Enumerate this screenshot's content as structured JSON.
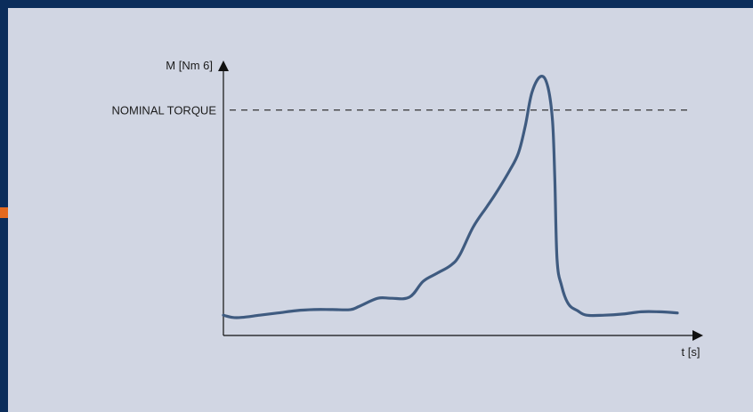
{
  "chart_data": {
    "type": "line",
    "title": "",
    "ylabel": "M [Nm 6]",
    "xlabel": "t [s]",
    "reference_line": {
      "label": "NOMINAL TORQUE",
      "value": 1.0,
      "style": "dashed"
    },
    "xlim": [
      0,
      10
    ],
    "ylim": [
      0,
      1.2
    ],
    "grid": false,
    "legend": "none",
    "series": [
      {
        "color": "#3f5b80",
        "x": [
          0.0,
          0.2,
          0.4,
          0.8,
          1.2,
          1.6,
          2.0,
          2.4,
          2.8,
          3.0,
          3.4,
          3.7,
          4.1,
          4.4,
          4.7,
          5.0,
          5.2,
          5.5,
          5.8,
          6.0,
          6.3,
          6.5,
          6.65,
          6.8,
          7.0,
          7.15,
          7.25,
          7.3,
          7.35,
          7.45,
          7.6,
          7.8,
          8.0,
          8.4,
          8.8,
          9.2,
          9.6,
          10.0
        ],
        "y": [
          0.09,
          0.08,
          0.08,
          0.09,
          0.1,
          0.11,
          0.115,
          0.115,
          0.115,
          0.13,
          0.165,
          0.165,
          0.17,
          0.24,
          0.275,
          0.31,
          0.355,
          0.48,
          0.57,
          0.63,
          0.73,
          0.81,
          0.93,
          1.08,
          1.15,
          1.1,
          0.95,
          0.7,
          0.34,
          0.22,
          0.14,
          0.11,
          0.09,
          0.09,
          0.095,
          0.105,
          0.105,
          0.1
        ]
      }
    ]
  }
}
